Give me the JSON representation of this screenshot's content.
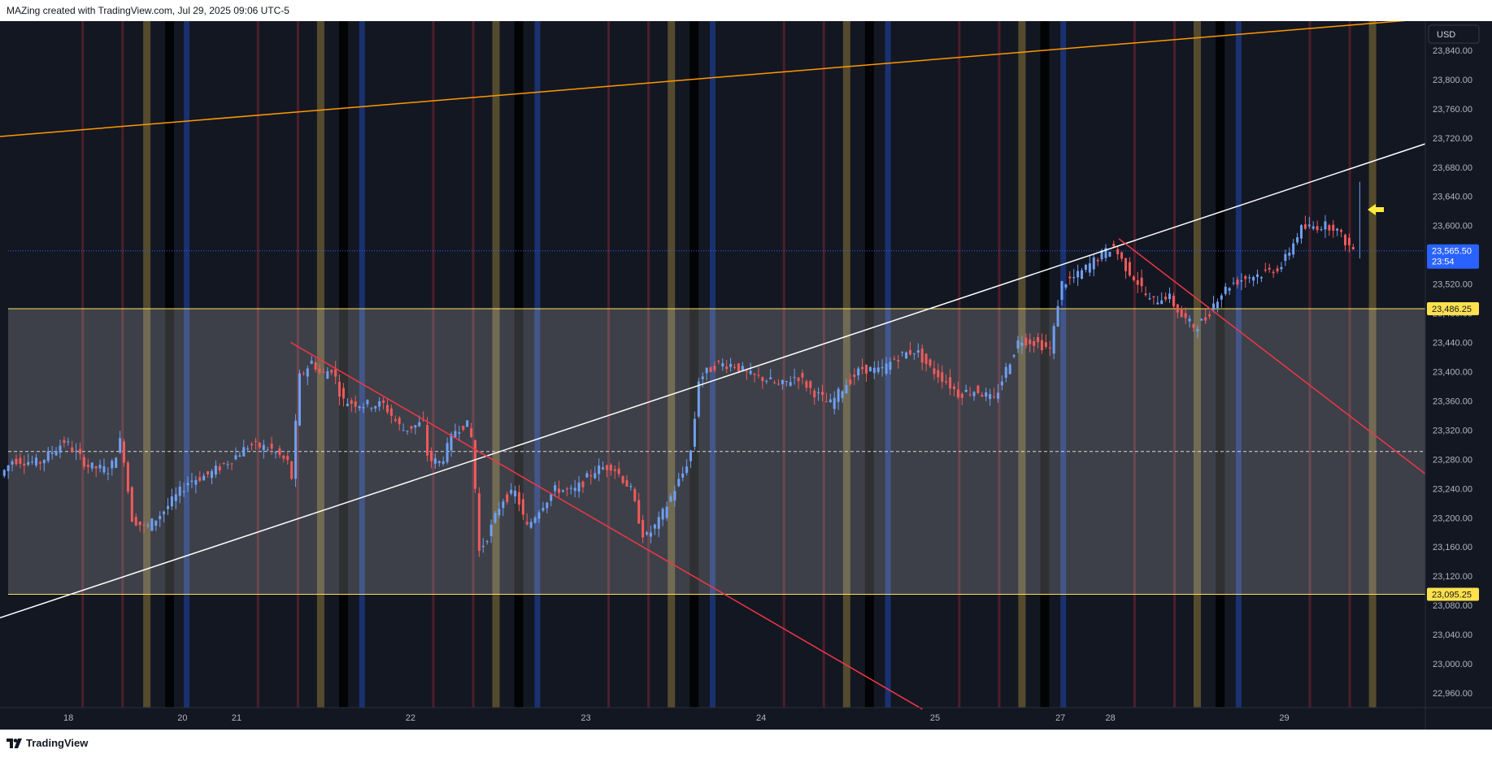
{
  "header": {
    "text": "MAZing created with TradingView.com, Jul 29, 2025 09:06 UTC-5"
  },
  "footer": {
    "brand": "TradingView"
  },
  "currency_badge": "USD",
  "colors": {
    "background": "#131722",
    "bull": "#6e9ff2",
    "bear": "#f05a5a",
    "orange_line": "#ff9800",
    "white_line": "#ffffff",
    "red_line": "#f23645",
    "zone_line": "#ffe14d",
    "last_price_badge": "#2962ff",
    "arrow": "#ffeb3b"
  },
  "chart_data": {
    "type": "candlestick",
    "symbol_currency": "USD",
    "y_axis": {
      "range": [
        22940,
        23880
      ],
      "ticks": [
        "23,840.00",
        "23,800.00",
        "23,760.00",
        "23,720.00",
        "23,680.00",
        "23,640.00",
        "23,600.00",
        "23,560.00",
        "23,520.00",
        "23,480.00",
        "23,440.00",
        "23,400.00",
        "23,360.00",
        "23,320.00",
        "23,280.00",
        "23,240.00",
        "23,200.00",
        "23,160.00",
        "23,120.00",
        "23,080.00",
        "23,040.00",
        "23,000.00",
        "22,960.00"
      ]
    },
    "x_axis": {
      "labels": [
        {
          "label": "18",
          "pos": 0.048
        },
        {
          "label": "20",
          "pos": 0.128
        },
        {
          "label": "21",
          "pos": 0.166
        },
        {
          "label": "22",
          "pos": 0.288
        },
        {
          "label": "23",
          "pos": 0.411
        },
        {
          "label": "24",
          "pos": 0.534
        },
        {
          "label": "25",
          "pos": 0.656
        },
        {
          "label": "27",
          "pos": 0.744
        },
        {
          "label": "28",
          "pos": 0.779
        },
        {
          "label": "29",
          "pos": 0.901
        }
      ]
    },
    "price_labels": [
      {
        "label": "23,565.50",
        "sub": "23:54",
        "value": 23565.5,
        "kind": "last"
      },
      {
        "label": "23,486.25",
        "value": 23486.25,
        "kind": "zone"
      },
      {
        "label": "23,095.25",
        "value": 23095.25,
        "kind": "zone"
      }
    ],
    "levels": {
      "zone_top": 23486.25,
      "zone_bottom": 23095.25,
      "zone_mid": 23290.75,
      "last_price": 23565.5
    },
    "price_path": [
      [
        0.0,
        23250
      ],
      [
        0.012,
        23280
      ],
      [
        0.03,
        23275
      ],
      [
        0.048,
        23305
      ],
      [
        0.065,
        23270
      ],
      [
        0.08,
        23265
      ],
      [
        0.088,
        23310
      ],
      [
        0.095,
        23200
      ],
      [
        0.105,
        23185
      ],
      [
        0.118,
        23210
      ],
      [
        0.135,
        23250
      ],
      [
        0.15,
        23260
      ],
      [
        0.165,
        23280
      ],
      [
        0.178,
        23300
      ],
      [
        0.192,
        23295
      ],
      [
        0.205,
        23275
      ],
      [
        0.208,
        23250
      ],
      [
        0.212,
        23390
      ],
      [
        0.222,
        23415
      ],
      [
        0.228,
        23395
      ],
      [
        0.236,
        23405
      ],
      [
        0.243,
        23360
      ],
      [
        0.258,
        23355
      ],
      [
        0.272,
        23355
      ],
      [
        0.285,
        23320
      ],
      [
        0.3,
        23330
      ],
      [
        0.303,
        23280
      ],
      [
        0.312,
        23275
      ],
      [
        0.322,
        23320
      ],
      [
        0.33,
        23330
      ],
      [
        0.335,
        23300
      ],
      [
        0.338,
        23150
      ],
      [
        0.346,
        23180
      ],
      [
        0.355,
        23225
      ],
      [
        0.365,
        23235
      ],
      [
        0.372,
        23185
      ],
      [
        0.382,
        23215
      ],
      [
        0.393,
        23240
      ],
      [
        0.405,
        23235
      ],
      [
        0.42,
        23265
      ],
      [
        0.432,
        23272
      ],
      [
        0.445,
        23240
      ],
      [
        0.455,
        23170
      ],
      [
        0.465,
        23195
      ],
      [
        0.475,
        23235
      ],
      [
        0.483,
        23265
      ],
      [
        0.488,
        23295
      ],
      [
        0.493,
        23390
      ],
      [
        0.505,
        23410
      ],
      [
        0.518,
        23410
      ],
      [
        0.528,
        23395
      ],
      [
        0.54,
        23390
      ],
      [
        0.55,
        23380
      ],
      [
        0.562,
        23395
      ],
      [
        0.572,
        23375
      ],
      [
        0.585,
        23355
      ],
      [
        0.597,
        23385
      ],
      [
        0.608,
        23405
      ],
      [
        0.62,
        23400
      ],
      [
        0.632,
        23420
      ],
      [
        0.645,
        23430
      ],
      [
        0.655,
        23405
      ],
      [
        0.665,
        23390
      ],
      [
        0.675,
        23370
      ],
      [
        0.688,
        23375
      ],
      [
        0.7,
        23360
      ],
      [
        0.708,
        23400
      ],
      [
        0.718,
        23445
      ],
      [
        0.73,
        23440
      ],
      [
        0.74,
        23430
      ],
      [
        0.747,
        23520
      ],
      [
        0.758,
        23530
      ],
      [
        0.772,
        23555
      ],
      [
        0.784,
        23572
      ],
      [
        0.792,
        23545
      ],
      [
        0.8,
        23525
      ],
      [
        0.81,
        23495
      ],
      [
        0.822,
        23505
      ],
      [
        0.832,
        23475
      ],
      [
        0.84,
        23462
      ],
      [
        0.848,
        23470
      ],
      [
        0.856,
        23500
      ],
      [
        0.866,
        23520
      ],
      [
        0.878,
        23530
      ],
      [
        0.89,
        23535
      ],
      [
        0.902,
        23545
      ],
      [
        0.915,
        23595
      ],
      [
        0.928,
        23600
      ],
      [
        0.938,
        23600
      ],
      [
        0.946,
        23580
      ],
      [
        0.951,
        23568
      ]
    ],
    "trendlines": [
      {
        "name": "orange",
        "color": "#ff9800",
        "from": [
          0.0,
          23722
        ],
        "to": [
          1.0,
          23883
        ]
      },
      {
        "name": "white",
        "color": "#ffffff",
        "from": [
          0.0,
          23063
        ],
        "to": [
          1.0,
          23712
        ]
      },
      {
        "name": "red_long",
        "color": "#f23645",
        "from": [
          0.204,
          23440
        ],
        "to": [
          0.647,
          22938
        ]
      },
      {
        "name": "red_short",
        "color": "#f23645",
        "from": [
          0.785,
          23582
        ],
        "to": [
          1.0,
          23260
        ]
      }
    ],
    "vertical_bands": [
      {
        "pos": 0.058,
        "type": "red"
      },
      {
        "pos": 0.086,
        "type": "red"
      },
      {
        "pos": 0.103,
        "type": "yellow"
      },
      {
        "pos": 0.119,
        "type": "black"
      },
      {
        "pos": 0.131,
        "type": "blue"
      },
      {
        "pos": 0.181,
        "type": "red"
      },
      {
        "pos": 0.209,
        "type": "red"
      },
      {
        "pos": 0.225,
        "type": "yellow"
      },
      {
        "pos": 0.241,
        "type": "black"
      },
      {
        "pos": 0.254,
        "type": "blue"
      },
      {
        "pos": 0.304,
        "type": "red"
      },
      {
        "pos": 0.332,
        "type": "red"
      },
      {
        "pos": 0.348,
        "type": "yellow"
      },
      {
        "pos": 0.364,
        "type": "black"
      },
      {
        "pos": 0.377,
        "type": "blue"
      },
      {
        "pos": 0.427,
        "type": "red"
      },
      {
        "pos": 0.455,
        "type": "red"
      },
      {
        "pos": 0.471,
        "type": "yellow"
      },
      {
        "pos": 0.487,
        "type": "black"
      },
      {
        "pos": 0.5,
        "type": "blue"
      },
      {
        "pos": 0.55,
        "type": "red"
      },
      {
        "pos": 0.578,
        "type": "red"
      },
      {
        "pos": 0.594,
        "type": "yellow"
      },
      {
        "pos": 0.61,
        "type": "black"
      },
      {
        "pos": 0.623,
        "type": "blue"
      },
      {
        "pos": 0.673,
        "type": "red"
      },
      {
        "pos": 0.701,
        "type": "red"
      },
      {
        "pos": 0.717,
        "type": "yellow"
      },
      {
        "pos": 0.733,
        "type": "black"
      },
      {
        "pos": 0.746,
        "type": "blue"
      },
      {
        "pos": 0.796,
        "type": "red"
      },
      {
        "pos": 0.824,
        "type": "red"
      },
      {
        "pos": 0.84,
        "type": "yellow"
      },
      {
        "pos": 0.856,
        "type": "black"
      },
      {
        "pos": 0.869,
        "type": "blue"
      },
      {
        "pos": 0.919,
        "type": "red"
      },
      {
        "pos": 0.947,
        "type": "red"
      },
      {
        "pos": 0.963,
        "type": "yellow"
      }
    ]
  }
}
